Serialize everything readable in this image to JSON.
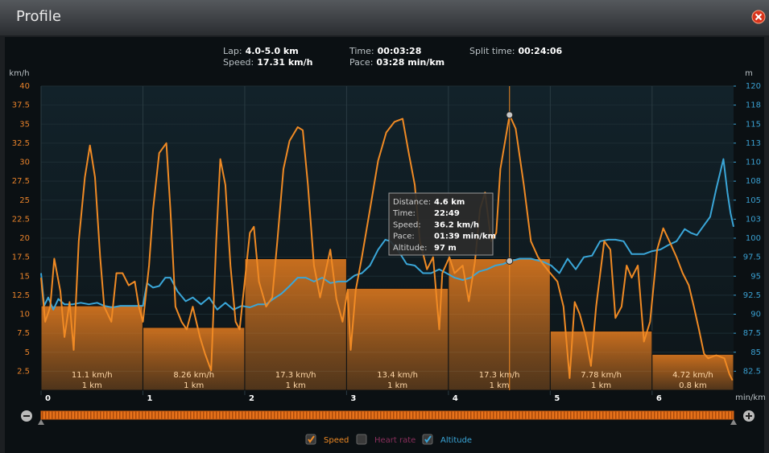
{
  "header": {
    "title": "Profile"
  },
  "info": [
    {
      "label": "Lap:",
      "value": "4.0-5.0 km"
    },
    {
      "label": "Speed:",
      "value": "17.31 km/h"
    },
    {
      "label": "Time:",
      "value": "00:03:28"
    },
    {
      "label": "Pace:",
      "value": "03:28 min/km"
    },
    {
      "label": "Split time:",
      "value": "00:24:06"
    }
  ],
  "chart_data": {
    "type": "line",
    "y_label": "km/h",
    "y2_label": "m",
    "x_label": "min/km",
    "xlim": [
      0,
      6.8
    ],
    "xticks": [
      0,
      1,
      2,
      3,
      4,
      5,
      6
    ],
    "ylim": [
      0,
      40
    ],
    "yticks": [
      2.5,
      5,
      7.5,
      10,
      12.5,
      15,
      17.5,
      20,
      22.5,
      25,
      27.5,
      30,
      32.5,
      35,
      37.5,
      40
    ],
    "y2lim": [
      80,
      120
    ],
    "y2ticks": [
      82.5,
      85,
      87.5,
      90,
      92.5,
      95,
      97.5,
      100,
      {
        "value": 102.5,
        "label": "103"
      },
      105,
      {
        "value": 107.5,
        "label": "108"
      },
      110,
      {
        "value": 112.5,
        "label": "113"
      },
      115,
      {
        "value": 117.5,
        "label": "118"
      },
      120
    ],
    "grid": true,
    "laps": {
      "color": "#e87d1e",
      "values": [
        11.1,
        8.26,
        17.3,
        13.4,
        17.3,
        7.78,
        4.72
      ],
      "value_labels": [
        "11.1 km/h",
        "8.26 km/h",
        "17.3 km/h",
        "13.4 km/h",
        "17.3 km/h",
        "7.78 km/h",
        "4.72 km/h"
      ],
      "distances": [
        1,
        1,
        1,
        1,
        1,
        1,
        0.8
      ],
      "distance_labels": [
        "1 km",
        "1 km",
        "1 km",
        "1 km",
        "1 km",
        "1 km",
        "0.8 km"
      ]
    },
    "series": [
      {
        "name": "Speed",
        "color": "#f08a24",
        "x": [
          0,
          0.04,
          0.09,
          0.13,
          0.19,
          0.23,
          0.28,
          0.32,
          0.37,
          0.43,
          0.48,
          0.53,
          0.58,
          0.62,
          0.69,
          0.74,
          0.8,
          0.86,
          0.92,
          0.96,
          1,
          1.06,
          1.1,
          1.16,
          1.23,
          1.27,
          1.32,
          1.38,
          1.43,
          1.49,
          1.56,
          1.61,
          1.67,
          1.72,
          1.76,
          1.81,
          1.86,
          1.91,
          1.95,
          2,
          2.05,
          2.09,
          2.14,
          2.21,
          2.27,
          2.32,
          2.38,
          2.44,
          2.52,
          2.57,
          2.62,
          2.68,
          2.74,
          2.79,
          2.84,
          2.9,
          2.96,
          3.01,
          3.04,
          3.09,
          3.15,
          3.23,
          3.31,
          3.39,
          3.47,
          3.55,
          3.61,
          3.67,
          3.72,
          3.79,
          3.85,
          3.91,
          3.94,
          4.01,
          4.06,
          4.14,
          4.2,
          4.26,
          4.31,
          4.36,
          4.42,
          4.47,
          4.51,
          4.6,
          4.66,
          4.74,
          4.81,
          4.88,
          4.94,
          5,
          5.07,
          5.13,
          5.19,
          5.24,
          5.29,
          5.35,
          5.4,
          5.45,
          5.53,
          5.59,
          5.64,
          5.7,
          5.75,
          5.8,
          5.86,
          5.92,
          5.98,
          6.05,
          6.11,
          6.17,
          6.24,
          6.3,
          6.36,
          6.41,
          6.46,
          6.51,
          6.55,
          6.63,
          6.71,
          6.76,
          6.79
        ],
        "values": [
          14.8,
          9,
          11,
          17.3,
          13,
          7,
          11.6,
          5.3,
          19.6,
          28,
          32.2,
          28,
          17.5,
          11,
          9,
          15.4,
          15.4,
          13.8,
          14.3,
          11,
          9,
          16.4,
          23.8,
          31.2,
          32.5,
          23.8,
          11,
          9,
          8,
          11,
          7,
          4.8,
          2.6,
          19.6,
          30.4,
          27,
          16.4,
          9,
          8,
          14.3,
          20.7,
          21.5,
          14.3,
          11,
          12.2,
          19.6,
          29.1,
          32.8,
          34.6,
          34.2,
          27,
          16.4,
          12.2,
          15.4,
          18.5,
          12,
          9,
          13.2,
          5.3,
          13.2,
          17.5,
          23.8,
          30.2,
          33.9,
          35.3,
          35.7,
          31.2,
          27,
          19.6,
          15.9,
          17.5,
          8,
          15.4,
          17.5,
          15.4,
          16.4,
          11.7,
          16.9,
          23.8,
          26,
          19.6,
          20.7,
          29.1,
          36.2,
          34.4,
          27,
          19.6,
          17.5,
          16.4,
          15.4,
          14.3,
          11,
          1.6,
          11.6,
          10,
          7,
          3.2,
          11,
          19.6,
          18.5,
          9.5,
          11,
          16.4,
          14.8,
          16.4,
          6.4,
          9,
          18.5,
          21.3,
          19.6,
          17.5,
          15.4,
          13.8,
          11,
          8,
          4.8,
          4.2,
          4.6,
          4.2,
          2.1,
          1.3
        ]
      },
      {
        "name": "Altitude",
        "color": "#3aa6d8",
        "axis": "y2",
        "x": [
          0,
          0.03,
          0.07,
          0.12,
          0.17,
          0.23,
          0.31,
          0.39,
          0.47,
          0.55,
          0.62,
          0.7,
          0.78,
          0.86,
          0.94,
          1,
          1.04,
          1.1,
          1.16,
          1.22,
          1.27,
          1.34,
          1.42,
          1.49,
          1.57,
          1.65,
          1.73,
          1.81,
          1.89,
          1.97,
          2.05,
          2.13,
          2.21,
          2.28,
          2.36,
          2.44,
          2.52,
          2.6,
          2.68,
          2.76,
          2.84,
          2.92,
          3,
          3.08,
          3.15,
          3.23,
          3.31,
          3.38,
          3.43,
          3.51,
          3.59,
          3.67,
          3.75,
          3.83,
          3.91,
          3.98,
          4.06,
          4.14,
          4.22,
          4.3,
          4.38,
          4.46,
          4.54,
          4.59,
          4.7,
          4.81,
          4.93,
          5.01,
          5.09,
          5.17,
          5.25,
          5.33,
          5.41,
          5.49,
          5.57,
          5.64,
          5.72,
          5.8,
          5.92,
          6,
          6.08,
          6.16,
          6.24,
          6.32,
          6.38,
          6.44,
          6.51,
          6.57,
          6.63,
          6.7,
          6.74,
          6.77,
          6.8
        ],
        "values": [
          95.4,
          91.1,
          92.2,
          90.6,
          92,
          91.3,
          91.3,
          91.5,
          91.3,
          91.5,
          91.1,
          90.9,
          91.1,
          91.1,
          91.1,
          91.1,
          94.1,
          93.5,
          93.7,
          94.8,
          94.8,
          93,
          91.7,
          92.2,
          91.3,
          92.2,
          90.6,
          91.5,
          90.6,
          91.1,
          90.9,
          91.3,
          91.3,
          92,
          92.7,
          93.7,
          94.8,
          94.8,
          94.3,
          94.8,
          94.1,
          94.3,
          94.3,
          95.1,
          95.4,
          96.4,
          98.5,
          99.8,
          99.6,
          98.3,
          96.6,
          96.4,
          95.4,
          95.4,
          95.9,
          95.4,
          94.8,
          94.5,
          94.8,
          95.6,
          95.9,
          96.4,
          96.6,
          96.9,
          97.3,
          97.3,
          96.9,
          96.4,
          95.4,
          97.3,
          95.9,
          97.5,
          97.7,
          99.6,
          99.8,
          99.8,
          99.6,
          97.9,
          97.9,
          98.3,
          98.5,
          99.1,
          99.6,
          101.2,
          100.7,
          100.4,
          101.7,
          102.8,
          106.5,
          110.4,
          106,
          103.3,
          101.5
        ]
      }
    ],
    "cursor": {
      "x": 4.6,
      "speed": 36.2,
      "altitude": 97
    },
    "tooltip": [
      {
        "label": "Distance:",
        "value": "4.6 km"
      },
      {
        "label": "Time:",
        "value": "22:49"
      },
      {
        "label": "Speed:",
        "value": "36.2 km/h"
      },
      {
        "label": "Pace:",
        "value": "01:39 min/km"
      },
      {
        "label": "Altitude:",
        "value": "97 m"
      }
    ]
  },
  "legend": [
    {
      "label": "Speed",
      "checked": true,
      "color": "#f08a24"
    },
    {
      "label": "Heart rate",
      "checked": false,
      "color": "#8a2f5c"
    },
    {
      "label": "Altitude",
      "checked": true,
      "color": "#3aa6d8"
    }
  ]
}
